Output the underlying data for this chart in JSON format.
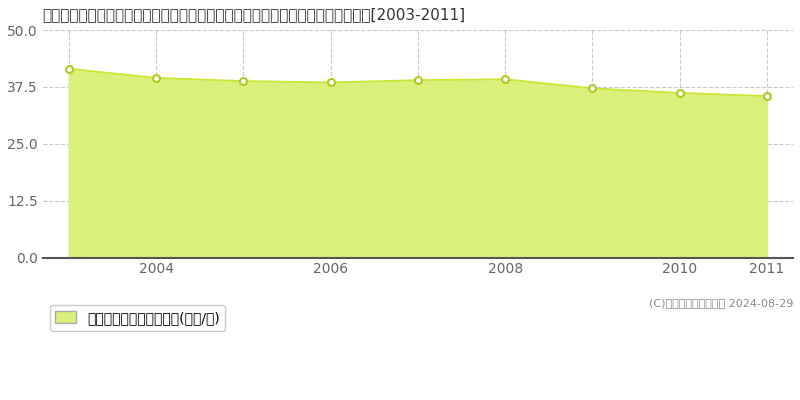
{
  "title": "埼玉県さいたま市見沼区大字大谷字稲荷１４９番１７外　基準地価格　地価推移[2003-2011]",
  "years": [
    2003,
    2004,
    2005,
    2006,
    2007,
    2008,
    2009,
    2010,
    2011
  ],
  "values": [
    41.5,
    39.5,
    38.8,
    38.5,
    39.0,
    39.2,
    37.2,
    36.2,
    35.5
  ],
  "line_color": "#c8e632",
  "fill_color": "#d9f07a",
  "marker_face_color": "#ffffff",
  "marker_edge_color": "#b0c820",
  "background_color": "#ffffff",
  "grid_color": "#c8c8c8",
  "axis_color": "#aaaaaa",
  "ylim": [
    0,
    50
  ],
  "yticks": [
    0,
    12.5,
    25,
    37.5,
    50
  ],
  "xticks": [
    2004,
    2006,
    2008,
    2010,
    2011
  ],
  "legend_label": "基準地価格　平均坤単価(万円/坤)",
  "copyright_text": "(C)土地価格ドットコム 2024-08-29",
  "title_fontsize": 11,
  "tick_fontsize": 10,
  "legend_fontsize": 10,
  "copyright_fontsize": 8
}
